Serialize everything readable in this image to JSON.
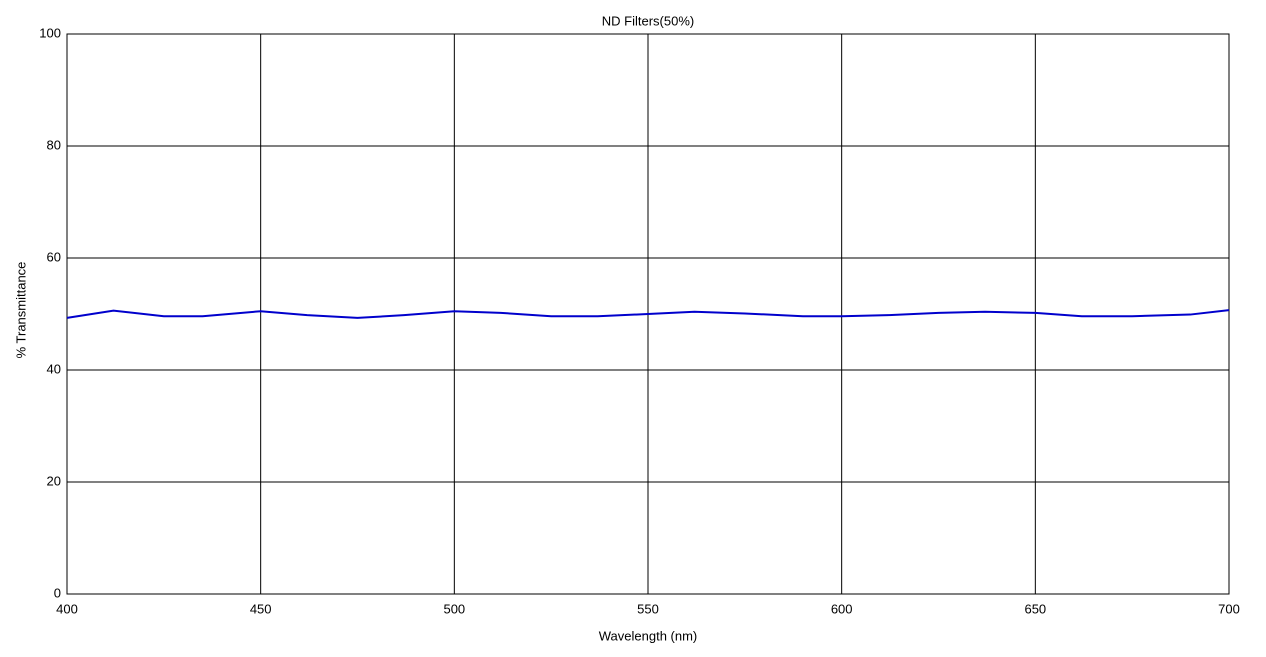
{
  "chart_data": {
    "type": "line",
    "title": "ND Filters(50%)",
    "x_label": "Wavelength (nm)",
    "y_label": "% Transmittance",
    "x": [
      400,
      412,
      425,
      435,
      450,
      462,
      475,
      487,
      500,
      512,
      525,
      537,
      550,
      562,
      575,
      590,
      600,
      612,
      625,
      637,
      650,
      662,
      675,
      690,
      700
    ],
    "series": [
      {
        "color": "#0000cc",
        "values": [
          49.3,
          50.6,
          49.6,
          49.6,
          50.5,
          49.8,
          49.3,
          49.8,
          50.5,
          50.2,
          49.6,
          49.6,
          50.0,
          50.4,
          50.1,
          49.6,
          49.6,
          49.8,
          50.2,
          50.4,
          50.2,
          49.6,
          49.6,
          49.9,
          50.7
        ]
      }
    ],
    "xlim": [
      400,
      700
    ],
    "xticks": [
      400,
      450,
      500,
      550,
      600,
      650,
      700
    ],
    "ylim": [
      0,
      100
    ],
    "yticks": [
      0,
      20,
      40,
      60,
      80,
      100
    ],
    "grid": true
  }
}
